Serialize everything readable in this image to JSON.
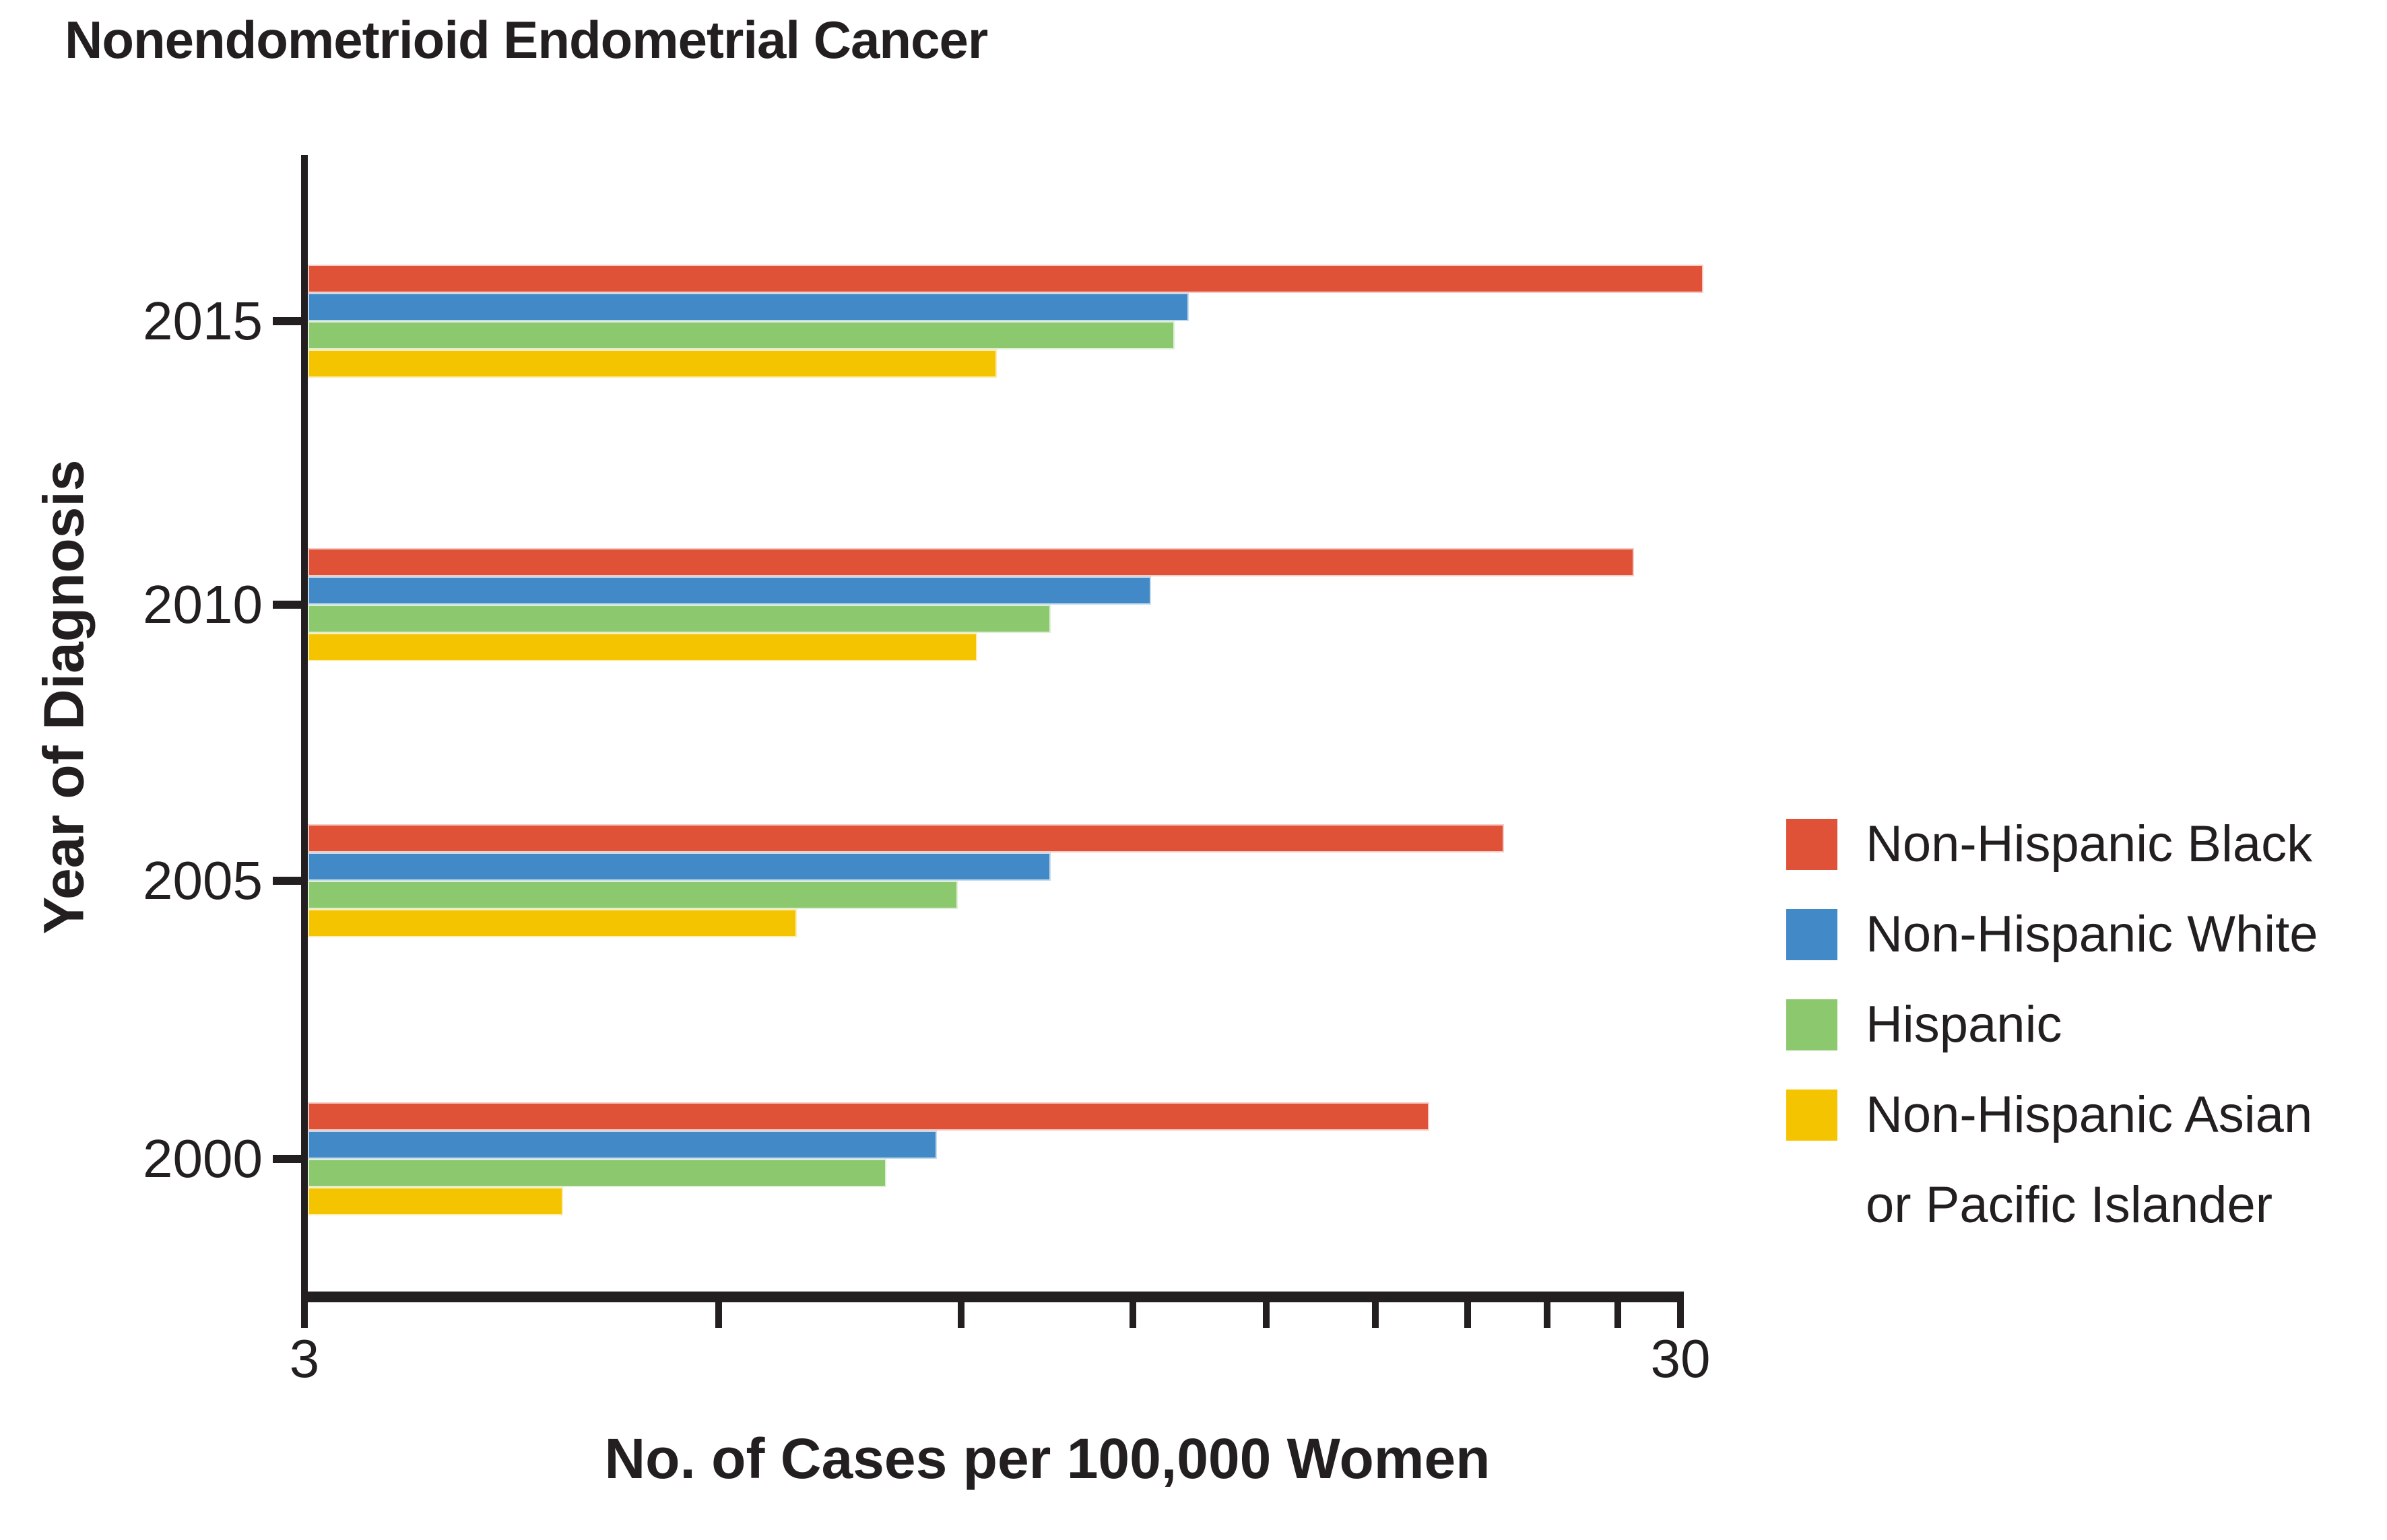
{
  "title": "Nonendometrioid Endometrial Cancer",
  "x_axis": {
    "label": "No. of Cases per 100,000 Women",
    "shown_tick_labels": [
      "3",
      "30"
    ]
  },
  "y_axis": {
    "label": "Year of Diagnosis"
  },
  "legend": {
    "items": [
      {
        "color": "#E05238",
        "lines": [
          "Non-Hispanic Black"
        ]
      },
      {
        "color": "#4189C7",
        "lines": [
          "Non-Hispanic White"
        ]
      },
      {
        "color": "#8CC86E",
        "lines": [
          "Hispanic"
        ]
      },
      {
        "color": "#F5C400",
        "lines": [
          "Non-Hispanic Asian",
          "or Pacific Islander"
        ]
      }
    ]
  },
  "chart_data": {
    "type": "bar",
    "orientation": "horizontal",
    "x_scale": "log",
    "title": "Nonendometrioid Endometrial Cancer",
    "xlabel": "No. of Cases per 100,000 Women",
    "ylabel": "Year of Diagnosis",
    "categories": [
      "2015",
      "2010",
      "2005",
      "2000"
    ],
    "series": [
      {
        "name": "Non-Hispanic Black",
        "color": "#E05238",
        "values": [
          31.0,
          27.6,
          22.2,
          19.6
        ]
      },
      {
        "name": "Non-Hispanic White",
        "color": "#4189C7",
        "values": [
          13.1,
          12.3,
          10.4,
          8.6
        ]
      },
      {
        "name": "Hispanic",
        "color": "#8CC86E",
        "values": [
          12.8,
          10.4,
          8.9,
          7.9
        ]
      },
      {
        "name": "Non-Hispanic Asian or Pacific Islander",
        "color": "#F5C400",
        "values": [
          9.5,
          9.2,
          6.8,
          4.6
        ]
      }
    ],
    "xlim": [
      3,
      30
    ],
    "xticks": [
      3,
      6,
      9,
      12,
      15,
      18,
      21,
      24,
      27,
      30
    ],
    "xtick_labels_shown": [
      "3",
      "30"
    ],
    "grid": false,
    "legend_position": "right"
  }
}
